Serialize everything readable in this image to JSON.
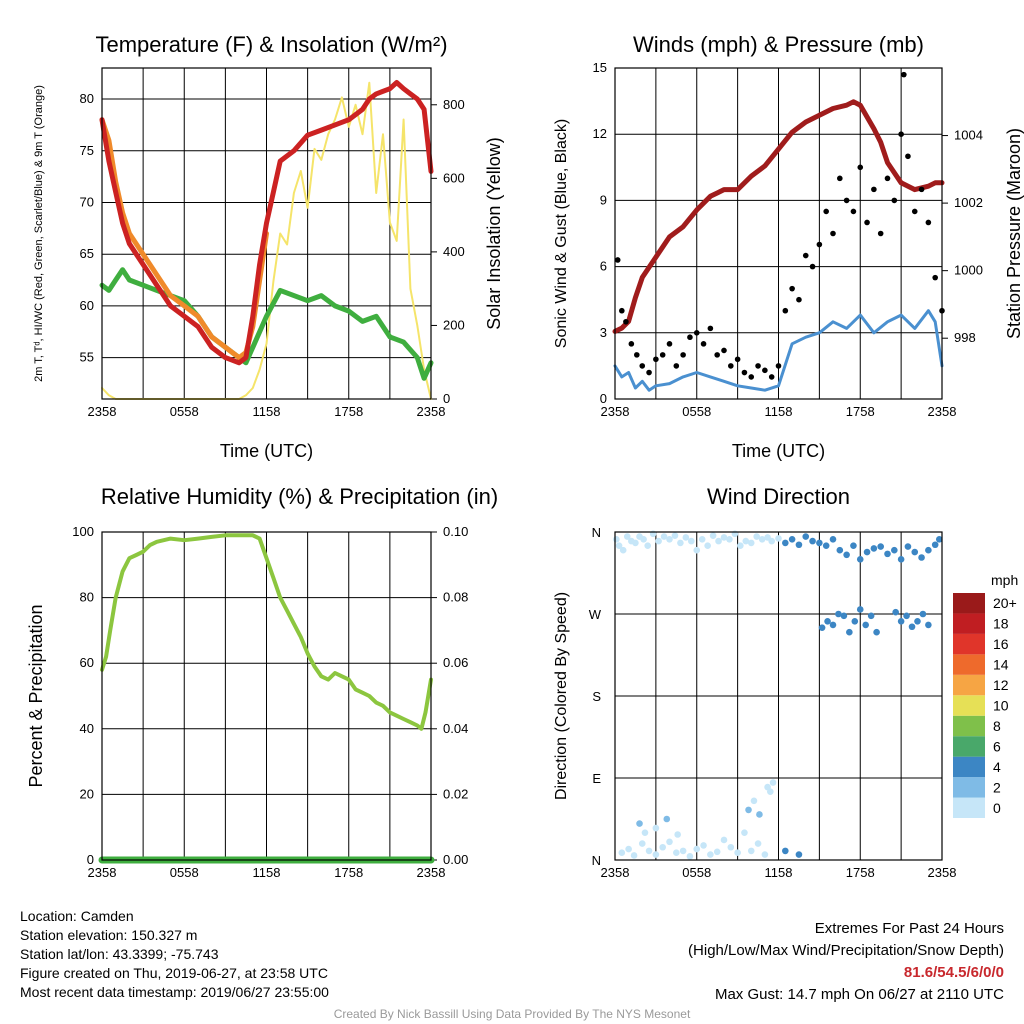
{
  "panels": {
    "temperature": {
      "title": "Temperature (F) & Insolation (W/m²)",
      "ylabel_left": "2m T, Tᵈ, HI/WC (Red, Green, Scarlet/Blue) & 9m T (Orange)",
      "ylabel_right": "Solar Insolation (Yellow)",
      "xlabel": "Time (UTC)"
    },
    "winds": {
      "title": "Winds (mph) & Pressure (mb)",
      "ylabel_left": "Sonic Wind & Gust (Blue, Black)",
      "ylabel_right": "Station Pressure (Maroon)",
      "xlabel": "Time (UTC)"
    },
    "humidity": {
      "title": "Relative Humidity (%) & Precipitation (in)",
      "ylabel_left": "Percent & Precipitation"
    },
    "direction": {
      "title": "Wind Direction",
      "ylabel_left": "Direction (Colored By Speed)",
      "colorbar_title": "mph"
    }
  },
  "info": {
    "location": "Location: Camden",
    "elevation": "Station elevation: 150.327 m",
    "latlon": "Station lat/lon: 43.3399; -75.743",
    "created": "Figure created on Thu, 2019-06-27, at 23:58 UTC",
    "recent": "Most recent data timestamp: 2019/06/27 23:55:00"
  },
  "extremes": {
    "title": "Extremes For Past 24 Hours",
    "subtitle": "(High/Low/Max Wind/Precipitation/Snow Depth)",
    "values": "81.6/54.5/6/0/0",
    "gust": "Max Gust: 14.7 mph On 06/27 at 2110 UTC"
  },
  "credit": "Created By Nick Bassill Using Data Provided By The NYS Mesonet",
  "chart_data": [
    {
      "type": "line",
      "title": "Temperature (F) & Insolation (W/m²)",
      "xlabel": "Time (UTC)",
      "x_ticks": [
        "2358",
        "0558",
        "1158",
        "1758",
        "2358"
      ],
      "xlim_hours": [
        0,
        24
      ],
      "ylim_left": [
        51,
        83
      ],
      "yticks_left": [
        55,
        60,
        65,
        70,
        75,
        80
      ],
      "ylim_right": [
        0,
        900
      ],
      "yticks_right": [
        0,
        200,
        400,
        600,
        800
      ],
      "grid": true,
      "series": [
        {
          "name": "2m T",
          "color": "#cc2222",
          "axis": "left",
          "x": [
            0,
            0.5,
            1,
            1.5,
            2,
            3,
            4,
            5,
            6,
            7,
            8,
            9,
            10,
            10.5,
            11,
            11.5,
            12,
            12.5,
            13,
            14,
            15,
            16,
            17,
            18,
            19,
            19.5,
            20,
            21,
            21.5,
            22,
            22.5,
            23,
            23.5,
            24
          ],
          "y": [
            78,
            74,
            71,
            68,
            66,
            64,
            62,
            60,
            59,
            58,
            56,
            55,
            54.5,
            55,
            59,
            64,
            68,
            71,
            74,
            75,
            76.5,
            77,
            77.5,
            78,
            79,
            80,
            80.5,
            81,
            81.6,
            81,
            80.5,
            80,
            79,
            73
          ]
        },
        {
          "name": "9m T",
          "color": "#f08a2a",
          "axis": "left",
          "x": [
            0,
            0.5,
            1,
            1.5,
            2,
            3,
            4,
            5,
            6,
            7,
            8,
            9,
            10,
            10.5,
            11,
            12
          ],
          "y": [
            78,
            76,
            72,
            69,
            67,
            65,
            63,
            61,
            60,
            59,
            57,
            56,
            55,
            55.5,
            58,
            67
          ]
        },
        {
          "name": "Td",
          "color": "#3fae3f",
          "axis": "left",
          "x": [
            0,
            0.5,
            1,
            1.5,
            2,
            3,
            4,
            5,
            6,
            7,
            8,
            9,
            10,
            10.5,
            11,
            12,
            13,
            14,
            15,
            16,
            17,
            18,
            19,
            20,
            21,
            22,
            23,
            23.5,
            24
          ],
          "y": [
            62,
            61.5,
            62.5,
            63.5,
            62.5,
            62,
            61.5,
            61,
            60.5,
            59,
            57,
            56,
            55,
            54.5,
            56,
            59,
            61.5,
            61,
            60.5,
            61,
            60,
            59.5,
            58.5,
            59,
            57,
            56.5,
            55,
            53,
            54.5
          ]
        },
        {
          "name": "Solar Insolation",
          "color": "#f5e46a",
          "axis": "right",
          "x": [
            0,
            0.5,
            1,
            2,
            4,
            6,
            8,
            10,
            10.5,
            11,
            11.5,
            12,
            12.5,
            13,
            13.5,
            14,
            14.5,
            15,
            15.5,
            16,
            16.5,
            17,
            17.5,
            18,
            18.5,
            19,
            19.5,
            20,
            20.5,
            21,
            21.5,
            22,
            22.5,
            23,
            23.5,
            24
          ],
          "y": [
            30,
            10,
            0,
            0,
            0,
            0,
            0,
            0,
            10,
            30,
            80,
            150,
            320,
            450,
            420,
            560,
            620,
            520,
            680,
            650,
            720,
            760,
            820,
            740,
            800,
            720,
            860,
            560,
            720,
            480,
            430,
            760,
            300,
            200,
            80,
            0
          ]
        }
      ]
    },
    {
      "type": "scatter",
      "title": "Winds (mph) & Pressure (mb)",
      "xlabel": "Time (UTC)",
      "x_ticks": [
        "2358",
        "0558",
        "1158",
        "1758",
        "2358"
      ],
      "xlim_hours": [
        0,
        24
      ],
      "ylim_left": [
        0,
        15
      ],
      "yticks_left": [
        0,
        3,
        6,
        9,
        12,
        15
      ],
      "ylim_right": [
        996.2,
        1006
      ],
      "yticks_right": [
        998,
        1000,
        1002,
        1004
      ],
      "grid": true,
      "series": [
        {
          "name": "Station Pressure",
          "color": "#a01c1c",
          "axis": "right",
          "kind": "line",
          "x": [
            0,
            0.5,
            1,
            1.5,
            2,
            3,
            4,
            5,
            6,
            7,
            7.5,
            8,
            9,
            10,
            11,
            12,
            13,
            14,
            15,
            16,
            17,
            17.5,
            18,
            19,
            19.5,
            20,
            21,
            22,
            23,
            23.5,
            24
          ],
          "y": [
            998.2,
            998.3,
            998.5,
            999.2,
            999.8,
            1000.4,
            1001.0,
            1001.3,
            1001.8,
            1002.2,
            1002.3,
            1002.4,
            1002.4,
            1002.8,
            1003.1,
            1003.6,
            1004.1,
            1004.4,
            1004.6,
            1004.8,
            1004.9,
            1005.0,
            1004.9,
            1004.2,
            1003.8,
            1003.2,
            1002.6,
            1002.4,
            1002.5,
            1002.6,
            1002.6
          ]
        },
        {
          "name": "Sonic Wind",
          "color": "#4a90d0",
          "axis": "left",
          "kind": "line",
          "x": [
            0,
            0.5,
            1,
            1.5,
            2,
            2.5,
            3,
            4,
            5,
            6,
            7,
            8,
            9,
            10,
            11,
            12,
            13,
            14,
            15,
            16,
            17,
            18,
            19,
            20,
            21,
            22,
            23,
            23.5,
            24
          ],
          "y": [
            1.5,
            1.0,
            1.2,
            0.5,
            0.8,
            0.4,
            0.6,
            0.7,
            1.0,
            1.2,
            1.0,
            0.8,
            0.6,
            0.5,
            0.4,
            0.6,
            2.5,
            2.8,
            3.0,
            3.5,
            3.2,
            3.8,
            3.0,
            3.5,
            3.8,
            3.2,
            4.0,
            3.5,
            1.5
          ]
        },
        {
          "name": "Gust",
          "color": "#000000",
          "axis": "left",
          "kind": "points",
          "x": [
            0.2,
            0.5,
            0.8,
            1.2,
            1.6,
            2.0,
            2.5,
            3.0,
            3.5,
            4.0,
            4.5,
            5.0,
            5.5,
            6.0,
            6.5,
            7.0,
            7.5,
            8.0,
            8.5,
            9.0,
            9.5,
            10.0,
            10.5,
            11.0,
            11.5,
            12.0,
            12.5,
            13.0,
            13.5,
            14.0,
            14.5,
            15.0,
            15.5,
            16.0,
            16.5,
            17.0,
            17.5,
            18.0,
            18.5,
            19.0,
            19.5,
            20.0,
            20.5,
            21.0,
            21.2,
            21.5,
            22.0,
            22.5,
            23.0,
            23.5,
            24.0
          ],
          "y": [
            6.3,
            4.0,
            3.5,
            2.5,
            2.0,
            1.5,
            1.2,
            1.8,
            2.0,
            2.5,
            1.5,
            2.0,
            2.8,
            3.0,
            2.5,
            3.2,
            2.0,
            2.2,
            1.5,
            1.8,
            1.2,
            1.0,
            1.5,
            1.3,
            1.0,
            1.5,
            4.0,
            5.0,
            4.5,
            6.5,
            6.0,
            7.0,
            8.5,
            7.5,
            10.0,
            9.0,
            8.5,
            10.5,
            8.0,
            9.5,
            7.5,
            10.0,
            9.0,
            12.0,
            14.7,
            11.0,
            8.5,
            9.5,
            8.0,
            5.5,
            4.0
          ]
        }
      ]
    },
    {
      "type": "line",
      "title": "Relative Humidity (%) & Precipitation (in)",
      "x_ticks": [
        "2358",
        "0558",
        "1158",
        "1758",
        "2358"
      ],
      "xlim_hours": [
        0,
        24
      ],
      "ylim_left": [
        0,
        100
      ],
      "yticks_left": [
        0,
        20,
        40,
        60,
        80,
        100
      ],
      "ylim_right": [
        0,
        0.1
      ],
      "yticks_right": [
        "0.00",
        "0.02",
        "0.04",
        "0.06",
        "0.08",
        "0.10"
      ],
      "grid": true,
      "series": [
        {
          "name": "Relative Humidity",
          "color": "#8cc63f",
          "axis": "left",
          "x": [
            0,
            0.3,
            0.6,
            1,
            1.5,
            2,
            2.5,
            3,
            3.5,
            4,
            5,
            6,
            7,
            8,
            9,
            10,
            11,
            11.5,
            12,
            12.5,
            13,
            13.5,
            14,
            14.5,
            15,
            15.5,
            16,
            16.5,
            17,
            17.5,
            18,
            18.5,
            19,
            19.5,
            20,
            20.5,
            21,
            21.5,
            22,
            22.5,
            23,
            23.3,
            23.6,
            24
          ],
          "y": [
            58,
            62,
            70,
            80,
            88,
            92,
            93,
            94,
            96,
            97,
            98,
            97.5,
            98,
            98.5,
            99,
            99,
            99,
            98,
            92,
            86,
            80,
            76,
            72,
            68,
            63,
            59,
            56,
            55,
            57,
            56,
            55,
            52,
            51,
            50,
            48,
            47,
            45,
            44,
            43,
            42,
            41,
            40,
            45,
            55
          ]
        },
        {
          "name": "Precipitation",
          "color": "#3fae3f",
          "axis": "right",
          "x": [
            0,
            24
          ],
          "y": [
            0,
            0
          ]
        }
      ]
    },
    {
      "type": "scatter",
      "title": "Wind Direction",
      "x_ticks": [
        "2358",
        "0558",
        "1158",
        "1758",
        "2358"
      ],
      "xlim_hours": [
        0,
        24
      ],
      "y_ticks": [
        "N",
        "E",
        "S",
        "W",
        "N"
      ],
      "ylim_degrees": [
        0,
        360
      ],
      "grid": true,
      "colorbar": {
        "title": "mph",
        "labels": [
          "0",
          "2",
          "4",
          "6",
          "8",
          "10",
          "12",
          "14",
          "16",
          "18",
          "20+"
        ],
        "colors": [
          "#c6e6f8",
          "#7fbbe6",
          "#3c86c4",
          "#49a86a",
          "#7fc04a",
          "#e6e056",
          "#f6a544",
          "#ee6a2c",
          "#e0352a",
          "#c01e22",
          "#9a1a1a"
        ],
        "placement": "right"
      },
      "points": {
        "x": [
          0.1,
          0.3,
          0.6,
          0.9,
          1.2,
          1.5,
          1.8,
          2.1,
          2.4,
          2.8,
          3.2,
          3.6,
          4.0,
          4.4,
          4.8,
          5.2,
          5.6,
          6.0,
          6.4,
          6.8,
          7.2,
          7.6,
          8.0,
          8.4,
          8.8,
          9.2,
          9.6,
          10.0,
          10.4,
          10.8,
          11.2,
          11.5,
          12.0,
          12.5,
          13.0,
          13.5,
          14.0,
          14.5,
          15.0,
          15.5,
          16.0,
          16.5,
          17.0,
          17.5,
          18.0,
          18.5,
          19.0,
          19.5,
          20.0,
          20.5,
          21.0,
          21.5,
          22.0,
          22.5,
          23.0,
          23.5,
          23.8,
          0.5,
          1.0,
          1.4,
          2.0,
          2.5,
          3.0,
          3.5,
          4.0,
          4.5,
          5.0,
          5.5,
          6.0,
          6.5,
          7.0,
          7.5,
          8.0,
          8.5,
          9.0,
          9.5,
          10.0,
          10.5,
          11.0,
          12.5,
          13.5,
          11.2,
          11.4,
          11.6,
          9.8,
          10.2,
          10.6,
          1.8,
          2.2,
          3.0,
          3.8,
          4.6,
          15.2,
          15.6,
          16.0,
          16.4,
          16.8,
          17.2,
          17.6,
          18.0,
          18.4,
          18.8,
          19.2,
          20.6,
          21.0,
          21.4,
          21.8,
          22.2,
          22.6,
          23.0
        ],
        "y": [
          352,
          345,
          340,
          355,
          350,
          348,
          355,
          352,
          345,
          358,
          350,
          355,
          352,
          356,
          348,
          354,
          350,
          340,
          352,
          345,
          356,
          350,
          354,
          352,
          358,
          345,
          350,
          348,
          355,
          352,
          354,
          350,
          353,
          348,
          352,
          346,
          355,
          350,
          348,
          345,
          352,
          340,
          335,
          345,
          330,
          338,
          342,
          344,
          336,
          340,
          330,
          344,
          338,
          332,
          340,
          346,
          352,
          8,
          12,
          5,
          18,
          10,
          6,
          14,
          20,
          8,
          10,
          4,
          12,
          16,
          6,
          9,
          22,
          14,
          8,
          30,
          10,
          18,
          6,
          10,
          6,
          80,
          75,
          85,
          55,
          65,
          50,
          40,
          30,
          35,
          45,
          28,
          255,
          262,
          258,
          270,
          268,
          250,
          262,
          275,
          258,
          268,
          250,
          272,
          262,
          268,
          256,
          262,
          270,
          258
        ]
      }
    }
  ]
}
